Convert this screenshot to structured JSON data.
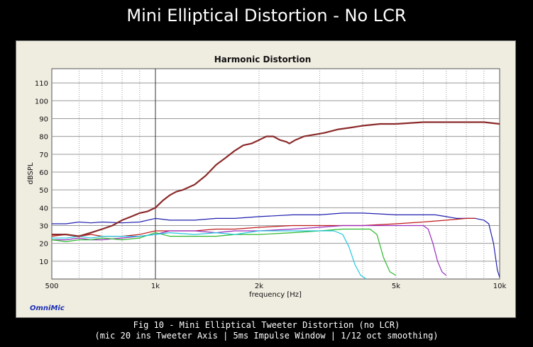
{
  "page": {
    "title": "Mini Elliptical Distortion - No LCR",
    "caption_line1": "Fig 10 - Mini Elliptical Tweeter Distortion (no LCR)",
    "caption_line2": "(mic 20 ins Tweeter Axis | 5ms Impulse Window | 1/12 oct smoothing)",
    "brand": "OmniMic"
  },
  "chart_data": {
    "type": "line",
    "title": "Harmonic Distortion",
    "xlabel": "frequency [Hz]",
    "ylabel": "dBSPL",
    "x_scale": "log",
    "xlim": [
      500,
      10000
    ],
    "ylim": [
      0,
      118
    ],
    "grid": true,
    "legend": "none",
    "x_ticks": [
      {
        "value": 500,
        "label": "500"
      },
      {
        "value": 1000,
        "label": "1k"
      },
      {
        "value": 2000,
        "label": "2k"
      },
      {
        "value": 5000,
        "label": "5k"
      },
      {
        "value": 10000,
        "label": "10k"
      }
    ],
    "y_ticks": [
      10,
      20,
      30,
      40,
      50,
      60,
      70,
      80,
      90,
      100,
      110
    ],
    "series": [
      {
        "color": "#1f1fae",
        "points": [
          [
            500,
            31
          ],
          [
            550,
            31
          ],
          [
            600,
            32
          ],
          [
            650,
            31.5
          ],
          [
            700,
            32
          ],
          [
            800,
            31.5
          ],
          [
            900,
            32
          ],
          [
            1000,
            34
          ],
          [
            1100,
            33
          ],
          [
            1300,
            33
          ],
          [
            1500,
            34
          ],
          [
            1700,
            34
          ],
          [
            2000,
            35
          ],
          [
            2500,
            36
          ],
          [
            3000,
            36
          ],
          [
            3500,
            37
          ],
          [
            4000,
            37
          ],
          [
            4500,
            36.5
          ],
          [
            5000,
            36
          ],
          [
            5500,
            36
          ],
          [
            6000,
            36
          ],
          [
            6500,
            36
          ],
          [
            7000,
            35
          ],
          [
            7500,
            34
          ],
          [
            8000,
            34
          ],
          [
            8500,
            34
          ],
          [
            9000,
            33
          ],
          [
            9300,
            31
          ],
          [
            9600,
            20
          ],
          [
            9850,
            5
          ],
          [
            10000,
            1
          ]
        ]
      },
      {
        "color": "#c01a1a",
        "points": [
          [
            500,
            24
          ],
          [
            550,
            25
          ],
          [
            600,
            24
          ],
          [
            650,
            25
          ],
          [
            700,
            24
          ],
          [
            800,
            24
          ],
          [
            900,
            25
          ],
          [
            1000,
            27
          ],
          [
            1100,
            27
          ],
          [
            1300,
            27
          ],
          [
            1500,
            28
          ],
          [
            1700,
            28
          ],
          [
            2000,
            29
          ],
          [
            2500,
            30
          ],
          [
            3000,
            30
          ],
          [
            3500,
            30
          ],
          [
            4000,
            30
          ],
          [
            5000,
            31
          ],
          [
            6000,
            32
          ],
          [
            7000,
            33
          ],
          [
            8000,
            34
          ],
          [
            8500,
            34
          ]
        ]
      },
      {
        "color": "#9a2dbf",
        "points": [
          [
            500,
            22
          ],
          [
            550,
            22
          ],
          [
            600,
            23
          ],
          [
            650,
            22
          ],
          [
            700,
            22
          ],
          [
            800,
            23
          ],
          [
            900,
            24
          ],
          [
            1000,
            25
          ],
          [
            1100,
            27
          ],
          [
            1300,
            27
          ],
          [
            1500,
            26
          ],
          [
            1700,
            27
          ],
          [
            2000,
            27
          ],
          [
            2500,
            28
          ],
          [
            3000,
            29
          ],
          [
            3500,
            30
          ],
          [
            4000,
            30
          ],
          [
            4500,
            30
          ],
          [
            5000,
            30
          ],
          [
            5500,
            30
          ],
          [
            6000,
            30
          ],
          [
            6200,
            28
          ],
          [
            6400,
            20
          ],
          [
            6600,
            10
          ],
          [
            6800,
            4
          ],
          [
            7000,
            2
          ]
        ]
      },
      {
        "color": "#2db82d",
        "points": [
          [
            500,
            22
          ],
          [
            550,
            21
          ],
          [
            600,
            22
          ],
          [
            650,
            22
          ],
          [
            700,
            23
          ],
          [
            800,
            22
          ],
          [
            900,
            23
          ],
          [
            1000,
            26
          ],
          [
            1100,
            24
          ],
          [
            1300,
            24
          ],
          [
            1500,
            24
          ],
          [
            1700,
            25
          ],
          [
            2000,
            25
          ],
          [
            2500,
            26
          ],
          [
            3000,
            27
          ],
          [
            3500,
            28
          ],
          [
            4000,
            28
          ],
          [
            4200,
            28
          ],
          [
            4400,
            25
          ],
          [
            4600,
            12
          ],
          [
            4800,
            4
          ],
          [
            5000,
            2
          ]
        ]
      },
      {
        "color": "#22c8e0",
        "points": [
          [
            500,
            23
          ],
          [
            550,
            23
          ],
          [
            600,
            24
          ],
          [
            650,
            23
          ],
          [
            700,
            24
          ],
          [
            800,
            24
          ],
          [
            900,
            24
          ],
          [
            1000,
            25
          ],
          [
            1100,
            26
          ],
          [
            1300,
            25
          ],
          [
            1500,
            26
          ],
          [
            1700,
            25
          ],
          [
            2000,
            27
          ],
          [
            2500,
            27
          ],
          [
            3000,
            27
          ],
          [
            3300,
            27
          ],
          [
            3500,
            25
          ],
          [
            3650,
            18
          ],
          [
            3800,
            8
          ],
          [
            3950,
            2
          ],
          [
            4100,
            0
          ]
        ]
      },
      {
        "color": "#8b2a2a",
        "points": [
          [
            500,
            25
          ],
          [
            550,
            25
          ],
          [
            600,
            24
          ],
          [
            650,
            26
          ],
          [
            700,
            28
          ],
          [
            750,
            30
          ],
          [
            800,
            33
          ],
          [
            850,
            35
          ],
          [
            900,
            37
          ],
          [
            950,
            38
          ],
          [
            1000,
            40
          ],
          [
            1050,
            44
          ],
          [
            1100,
            47
          ],
          [
            1150,
            49
          ],
          [
            1200,
            50
          ],
          [
            1300,
            53
          ],
          [
            1400,
            58
          ],
          [
            1500,
            64
          ],
          [
            1600,
            68
          ],
          [
            1700,
            72
          ],
          [
            1800,
            75
          ],
          [
            1900,
            76
          ],
          [
            2000,
            78
          ],
          [
            2100,
            80
          ],
          [
            2200,
            80
          ],
          [
            2300,
            78
          ],
          [
            2400,
            77
          ],
          [
            2450,
            76
          ],
          [
            2550,
            78
          ],
          [
            2700,
            80
          ],
          [
            2900,
            81
          ],
          [
            3100,
            82
          ],
          [
            3400,
            84
          ],
          [
            3700,
            85
          ],
          [
            4000,
            86
          ],
          [
            4500,
            87
          ],
          [
            5000,
            87
          ],
          [
            6000,
            88
          ],
          [
            7000,
            88
          ],
          [
            8000,
            88
          ],
          [
            9000,
            88
          ],
          [
            10000,
            87
          ]
        ]
      }
    ]
  }
}
